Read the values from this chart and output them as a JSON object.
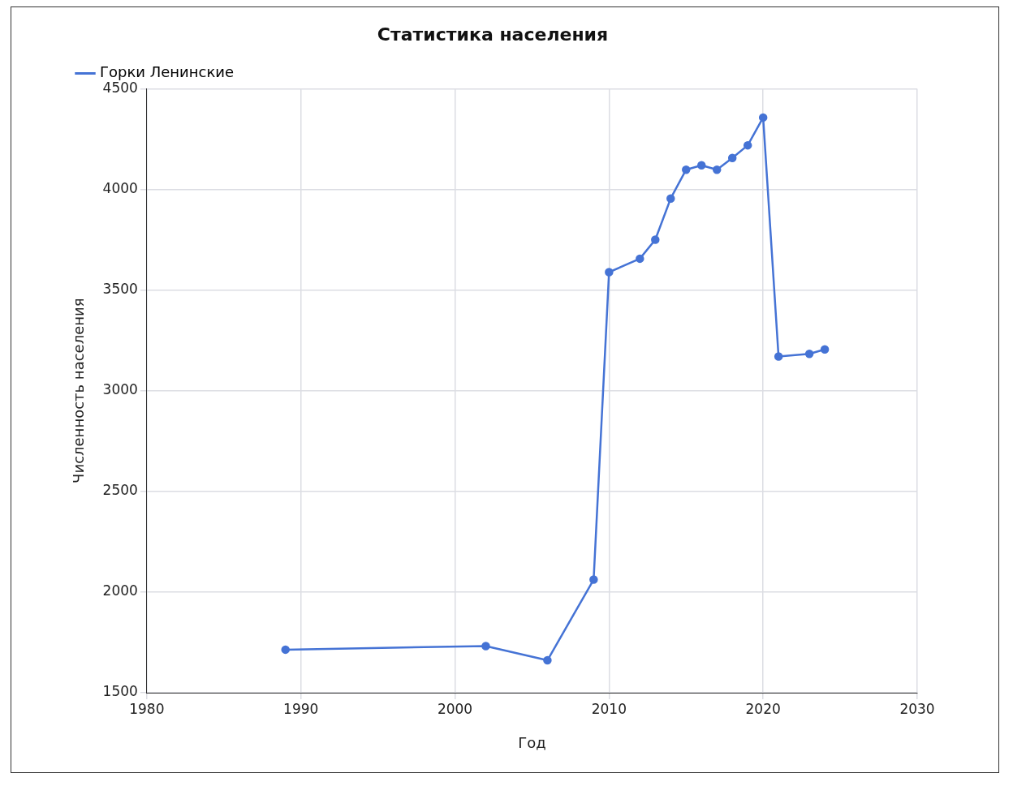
{
  "chart_data": {
    "type": "line",
    "title": "Статистика населения",
    "xlabel": "Год",
    "ylabel": "Численность населения",
    "series": [
      {
        "name": "Горки Ленинские",
        "color": "#4573d5",
        "x": [
          1989,
          2002,
          2006,
          2009,
          2010,
          2012,
          2013,
          2014,
          2015,
          2016,
          2017,
          2018,
          2019,
          2020,
          2021,
          2023,
          2024
        ],
        "values": [
          1714,
          1732,
          1661,
          2062,
          3589,
          3656,
          3750,
          3955,
          4098,
          4120,
          4098,
          4156,
          4219,
          4357,
          3170,
          3183,
          3205
        ]
      }
    ],
    "xlim": [
      1980,
      2030
    ],
    "xticks": [
      1980,
      1990,
      2000,
      2010,
      2020,
      2030
    ],
    "ylim": [
      1500,
      4500
    ],
    "yticks": [
      1500,
      2000,
      2500,
      3000,
      3500,
      4000,
      4500
    ],
    "grid": true,
    "legend": "top left",
    "marker": "circle",
    "line_style": "solid"
  }
}
